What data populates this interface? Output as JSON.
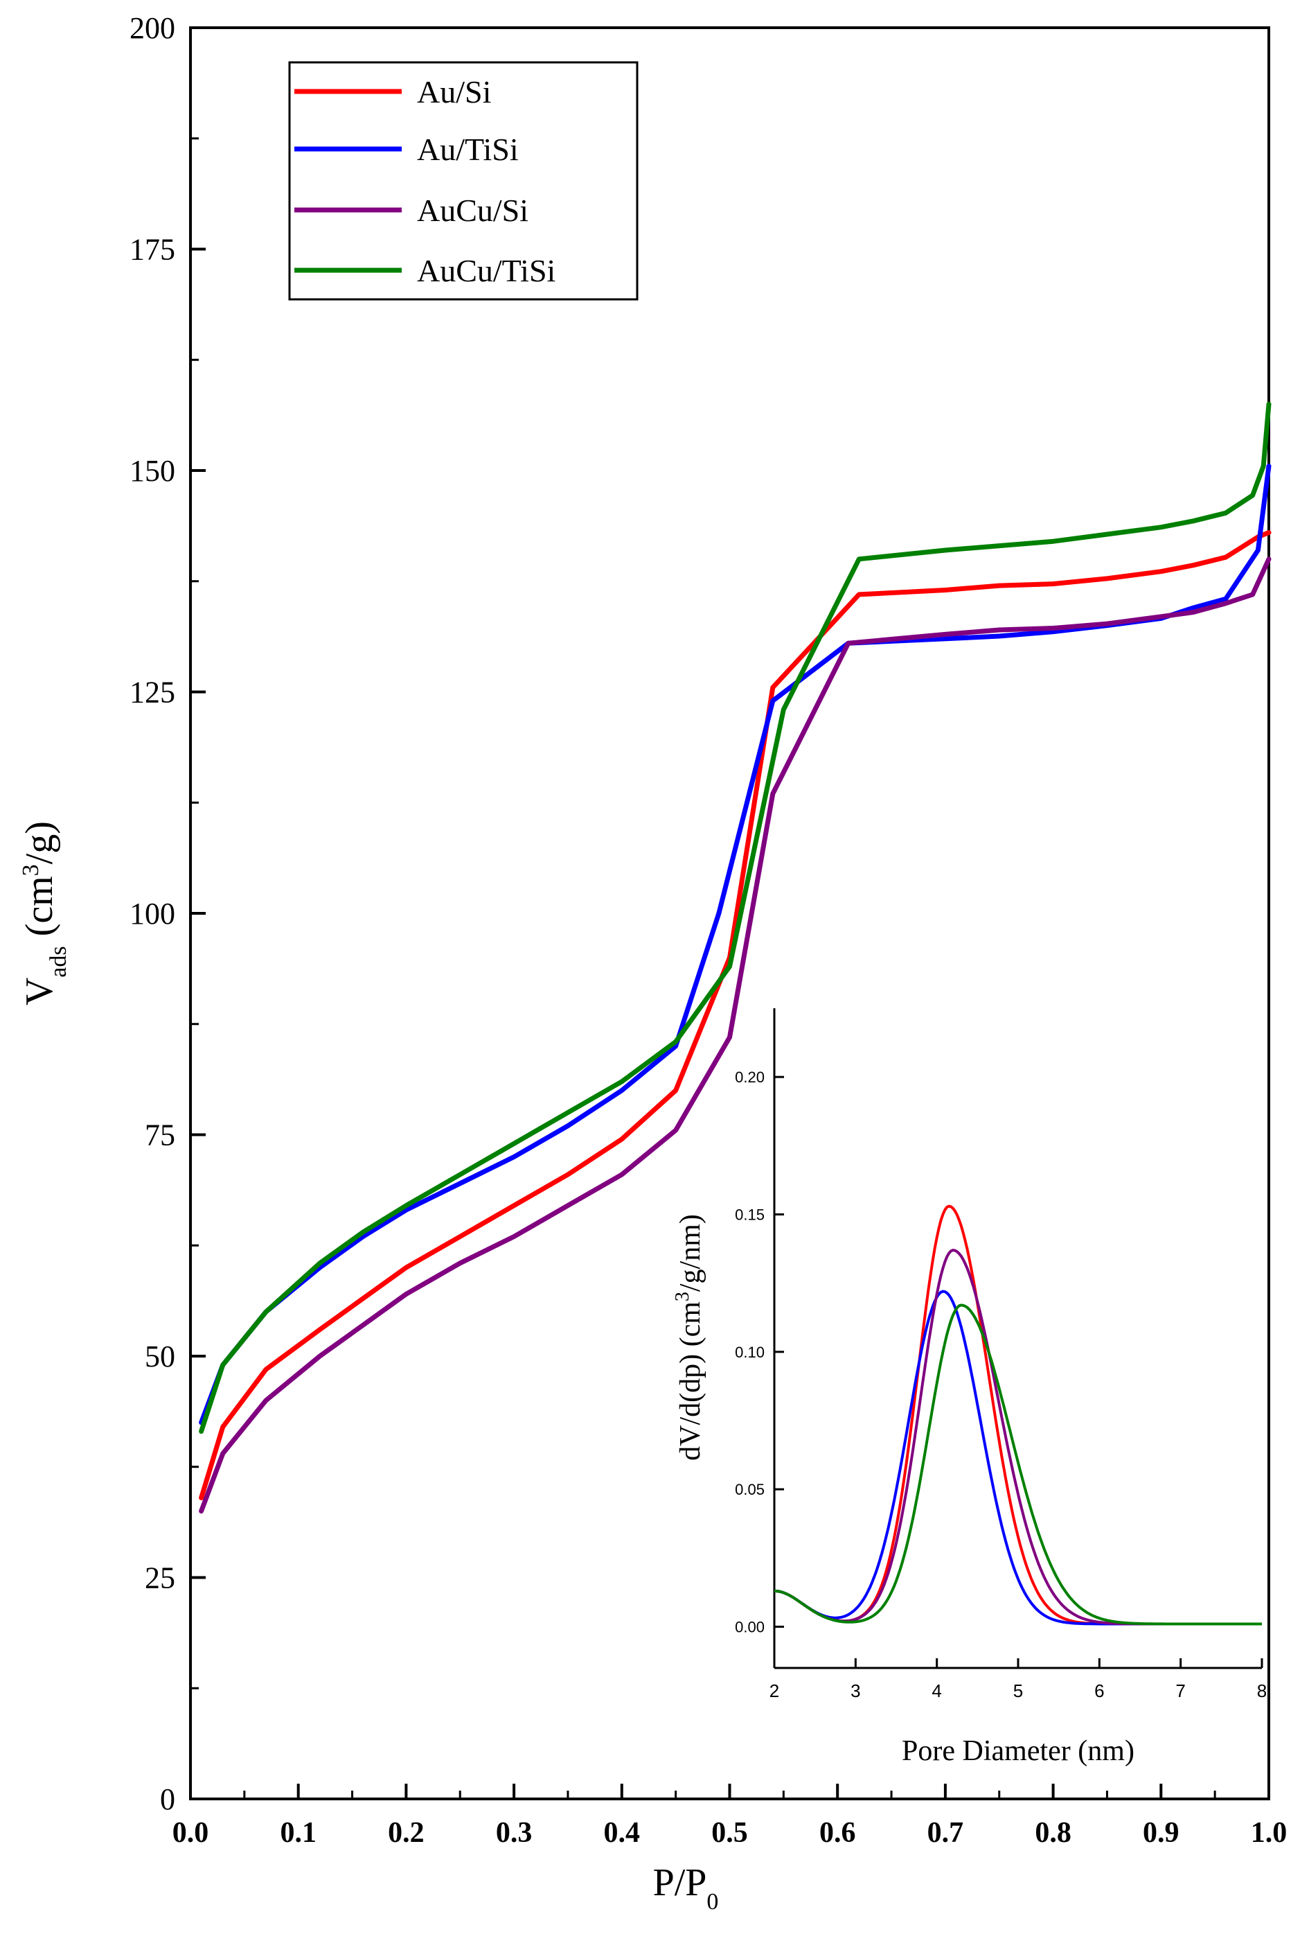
{
  "chart_data": [
    {
      "id": "main",
      "type": "line",
      "title": "",
      "xlabel": "P/P",
      "xlabel_sub": "0",
      "ylabel": "V",
      "ylabel_sub": "ads",
      "ylabel_unit_pre": " (cm",
      "ylabel_unit_sup": "3",
      "ylabel_unit_post": "/g)",
      "xlim": [
        0.0,
        1.0
      ],
      "ylim": [
        0,
        200
      ],
      "xticks": [
        0.0,
        0.1,
        0.2,
        0.3,
        0.4,
        0.5,
        0.6,
        0.7,
        0.8,
        0.9,
        1.0
      ],
      "xtick_labels": [
        "0.0",
        "0.1",
        "0.2",
        "0.3",
        "0.4",
        "0.5",
        "0.6",
        "0.7",
        "0.8",
        "0.9",
        "1.0"
      ],
      "yticks": [
        0,
        25,
        50,
        75,
        100,
        125,
        150,
        175,
        200
      ],
      "ytick_labels": [
        "0",
        "25",
        "50",
        "75",
        "100",
        "125",
        "150",
        "175",
        "200"
      ],
      "grid": false,
      "legend_position": "top-left",
      "series": [
        {
          "name": "Au/Si",
          "color": "#ff0000",
          "points": [
            [
              0.01,
              34
            ],
            [
              0.03,
              42
            ],
            [
              0.07,
              48.5
            ],
            [
              0.12,
              53
            ],
            [
              0.16,
              56.5
            ],
            [
              0.2,
              60
            ],
            [
              0.25,
              63.5
            ],
            [
              0.3,
              67
            ],
            [
              0.35,
              70.5
            ],
            [
              0.4,
              74.5
            ],
            [
              0.45,
              80
            ],
            [
              0.5,
              95
            ],
            [
              0.54,
              125.5
            ],
            [
              0.62,
              136
            ],
            [
              0.7,
              136.5
            ],
            [
              0.75,
              137
            ],
            [
              0.8,
              137.2
            ],
            [
              0.85,
              137.8
            ],
            [
              0.9,
              138.6
            ],
            [
              0.93,
              139.3
            ],
            [
              0.96,
              140.2
            ],
            [
              0.99,
              142.5
            ],
            [
              1.0,
              143
            ]
          ]
        },
        {
          "name": "Au/TiSi",
          "color": "#0000ff",
          "points": [
            [
              0.01,
              42.5
            ],
            [
              0.03,
              49
            ],
            [
              0.07,
              55
            ],
            [
              0.12,
              60
            ],
            [
              0.16,
              63.5
            ],
            [
              0.2,
              66.5
            ],
            [
              0.25,
              69.5
            ],
            [
              0.3,
              72.5
            ],
            [
              0.35,
              76
            ],
            [
              0.4,
              80
            ],
            [
              0.45,
              85
            ],
            [
              0.49,
              100
            ],
            [
              0.54,
              124
            ],
            [
              0.61,
              130.5
            ],
            [
              0.7,
              131
            ],
            [
              0.75,
              131.3
            ],
            [
              0.8,
              131.8
            ],
            [
              0.85,
              132.5
            ],
            [
              0.9,
              133.3
            ],
            [
              0.93,
              134.5
            ],
            [
              0.96,
              135.5
            ],
            [
              0.99,
              141
            ],
            [
              1.0,
              150.5
            ]
          ]
        },
        {
          "name": "AuCu/Si",
          "color": "#800080",
          "points": [
            [
              0.01,
              32.5
            ],
            [
              0.03,
              39
            ],
            [
              0.07,
              45
            ],
            [
              0.12,
              50
            ],
            [
              0.16,
              53.5
            ],
            [
              0.2,
              57
            ],
            [
              0.25,
              60.5
            ],
            [
              0.3,
              63.5
            ],
            [
              0.35,
              67
            ],
            [
              0.4,
              70.5
            ],
            [
              0.45,
              75.5
            ],
            [
              0.5,
              86
            ],
            [
              0.54,
              113.5
            ],
            [
              0.61,
              130.5
            ],
            [
              0.7,
              131.5
            ],
            [
              0.75,
              132
            ],
            [
              0.8,
              132.2
            ],
            [
              0.85,
              132.7
            ],
            [
              0.9,
              133.5
            ],
            [
              0.93,
              134
            ],
            [
              0.96,
              135
            ],
            [
              0.985,
              136
            ],
            [
              1.0,
              140
            ]
          ]
        },
        {
          "name": "AuCu/TiSi",
          "color": "#008000",
          "points": [
            [
              0.01,
              41.5
            ],
            [
              0.03,
              49
            ],
            [
              0.07,
              55
            ],
            [
              0.12,
              60.5
            ],
            [
              0.16,
              64
            ],
            [
              0.2,
              67
            ],
            [
              0.25,
              70.5
            ],
            [
              0.3,
              74
            ],
            [
              0.35,
              77.5
            ],
            [
              0.4,
              81
            ],
            [
              0.45,
              85.5
            ],
            [
              0.5,
              94
            ],
            [
              0.55,
              123
            ],
            [
              0.62,
              140
            ],
            [
              0.7,
              141
            ],
            [
              0.75,
              141.5
            ],
            [
              0.8,
              142
            ],
            [
              0.85,
              142.8
            ],
            [
              0.9,
              143.6
            ],
            [
              0.93,
              144.3
            ],
            [
              0.96,
              145.2
            ],
            [
              0.985,
              147.2
            ],
            [
              0.995,
              150.5
            ],
            [
              1.0,
              157.5
            ]
          ]
        }
      ]
    },
    {
      "id": "inset",
      "type": "line",
      "title": "",
      "xlabel": "Pore Diameter (nm)",
      "ylabel_pre": "dV/d(dp) (cm",
      "ylabel_sup": "3",
      "ylabel_post": "/g/nm)",
      "xlim": [
        2,
        8
      ],
      "ylim": [
        -0.015,
        0.225
      ],
      "xticks": [
        2,
        3,
        4,
        5,
        6,
        7,
        8
      ],
      "xtick_labels": [
        "2",
        "3",
        "4",
        "5",
        "6",
        "7",
        "8"
      ],
      "yticks": [
        0.0,
        0.05,
        0.1,
        0.15,
        0.2
      ],
      "ytick_labels": [
        "0.00",
        "0.05",
        "0.10",
        "0.15",
        "0.20"
      ],
      "grid": false,
      "series": [
        {
          "name": "Au/Si",
          "color": "#ff0000",
          "peak_x": 4.15,
          "peak_height": 0.152,
          "sigma_left": 0.38,
          "sigma_right": 0.48,
          "baseline": 0.001
        },
        {
          "name": "Au/TiSi",
          "color": "#0000ff",
          "peak_x": 4.08,
          "peak_height": 0.121,
          "sigma_left": 0.43,
          "sigma_right": 0.46,
          "baseline": 0.001
        },
        {
          "name": "AuCu/Si",
          "color": "#800080",
          "peak_x": 4.2,
          "peak_height": 0.136,
          "sigma_left": 0.4,
          "sigma_right": 0.55,
          "baseline": 0.001
        },
        {
          "name": "AuCu/TiSi",
          "color": "#008000",
          "peak_x": 4.3,
          "peak_height": 0.116,
          "sigma_left": 0.4,
          "sigma_right": 0.6,
          "baseline": 0.001
        }
      ]
    }
  ]
}
